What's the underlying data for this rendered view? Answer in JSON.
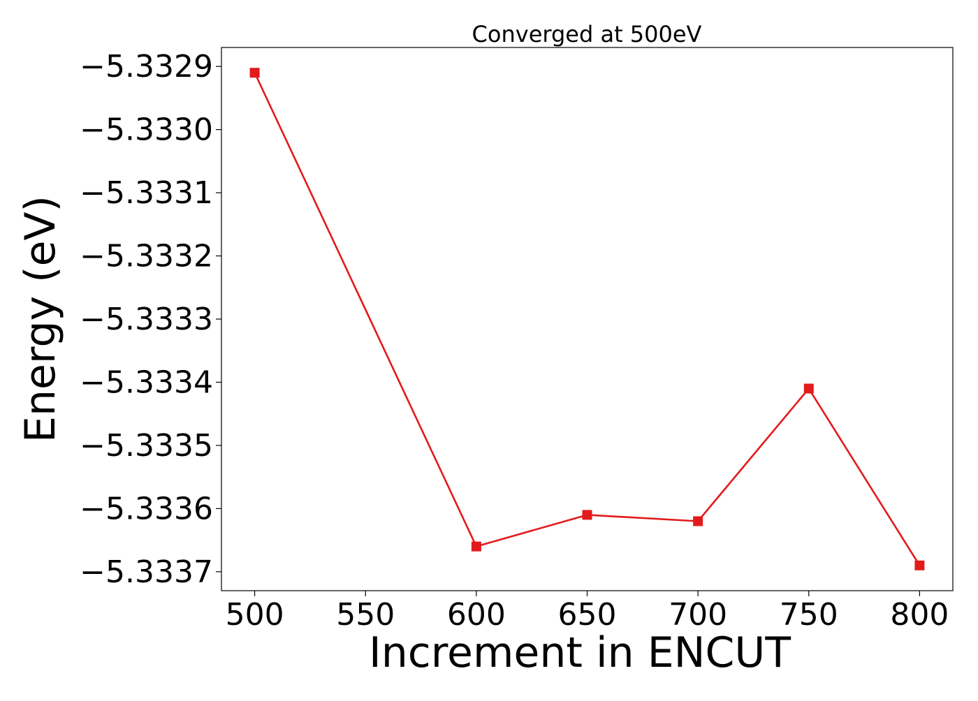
{
  "chart_data": {
    "type": "line",
    "title": "Converged at 500eV",
    "xlabel": "Increment in ENCUT",
    "ylabel": "Energy (eV)",
    "x": [
      500,
      600,
      650,
      700,
      750,
      800
    ],
    "y": [
      -5.33291,
      -5.33366,
      -5.33361,
      -5.33362,
      -5.33341,
      -5.33369
    ],
    "xticks": [
      500,
      550,
      600,
      650,
      700,
      750,
      800
    ],
    "xtick_labels": [
      "500",
      "550",
      "600",
      "650",
      "700",
      "750",
      "800"
    ],
    "yticks": [
      -5.3329,
      -5.333,
      -5.3331,
      -5.3332,
      -5.3333,
      -5.3334,
      -5.3335,
      -5.3336,
      -5.3337
    ],
    "ytick_labels": [
      "−5.3329",
      "−5.3330",
      "−5.3331",
      "−5.3332",
      "−5.3333",
      "−5.3334",
      "−5.3335",
      "−5.3336",
      "−5.3337"
    ],
    "xlim": [
      485,
      815
    ],
    "ylim": [
      -5.33373,
      -5.33287
    ],
    "grid": false,
    "series": [
      {
        "color": "#e31a1c",
        "marker": "square",
        "values": [
          -5.33291,
          -5.33366,
          -5.33361,
          -5.33362,
          -5.33341,
          -5.33369
        ]
      }
    ]
  }
}
